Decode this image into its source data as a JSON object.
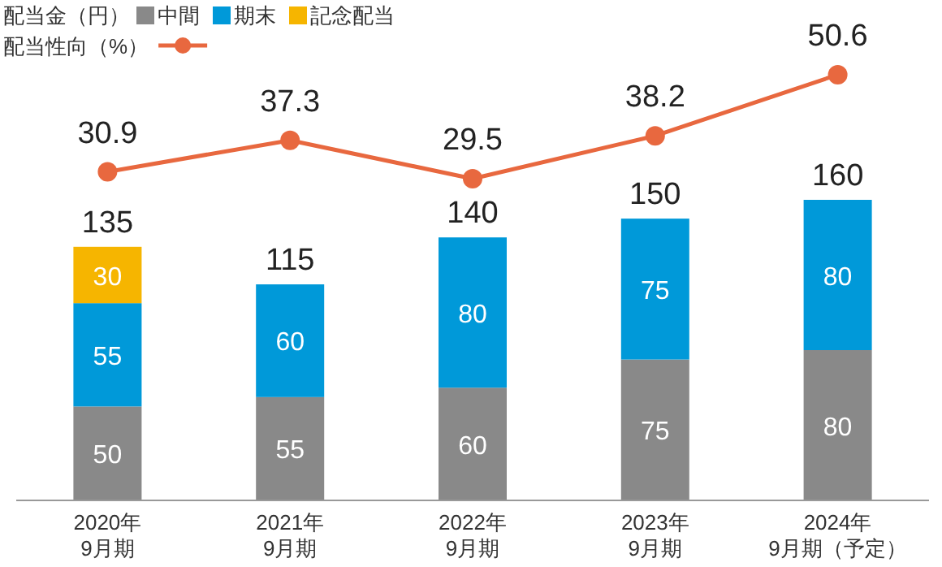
{
  "chart_data": [
    {
      "type": "bar",
      "stacked": true,
      "data_labels": true,
      "legend": "top left",
      "legend_title": "配当金（円）",
      "categories": [
        "2020年\n9月期",
        "2021年\n9月期",
        "2022年\n9月期",
        "2023年\n9月期",
        "2024年\n9月期（予定）"
      ],
      "series": [
        {
          "name": "中間",
          "color": "#898989",
          "values": [
            50,
            55,
            60,
            75,
            80
          ]
        },
        {
          "name": "期末",
          "color": "#0099d9",
          "values": [
            55,
            60,
            80,
            75,
            80
          ]
        },
        {
          "name": "記念配当",
          "color": "#f6b500",
          "values": [
            30,
            null,
            null,
            null,
            null
          ]
        }
      ],
      "totals": [
        "135",
        "115",
        "140",
        "150",
        "160"
      ]
    },
    {
      "type": "line",
      "data_labels": true,
      "legend": "top left",
      "marker": "circle",
      "categories": [
        null,
        null,
        null,
        null,
        null
      ],
      "series": [
        {
          "name": "配当性向（%）",
          "color": "#e8683f",
          "values": [
            30.9,
            37.3,
            29.5,
            38.2,
            50.6
          ]
        }
      ]
    }
  ]
}
